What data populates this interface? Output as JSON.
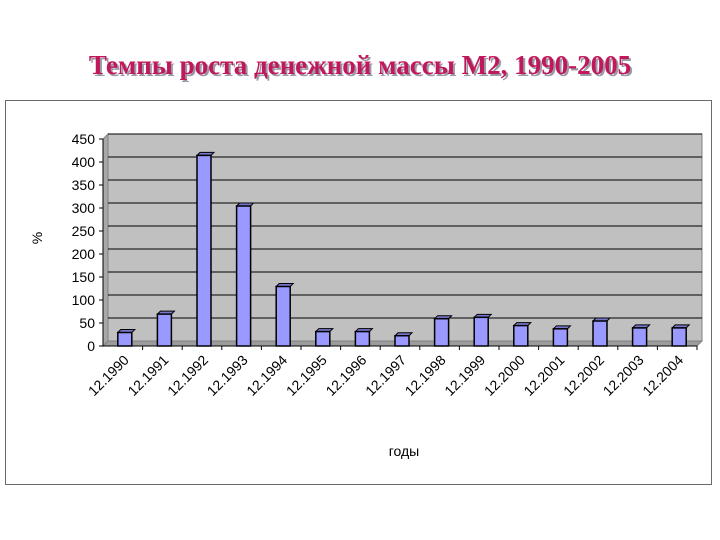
{
  "title": "Темпы роста денежной массы М2, 1990-2005",
  "colors": {
    "title": "#c0185a",
    "bar_fill": "#9999ff",
    "bar_stroke": "#000000",
    "plot_bg": "#c0c0c0",
    "grid": "#000000"
  },
  "chart_data": {
    "type": "bar",
    "categories": [
      "12.1990",
      "12.1991",
      "12.1992",
      "12.1993",
      "12.1994",
      "12.1995",
      "12.1996",
      "12.1997",
      "12.1998",
      "12.1999",
      "12.2000",
      "12.2001",
      "12.2002",
      "12.2003",
      "12.2004"
    ],
    "values": [
      25,
      65,
      410,
      300,
      125,
      27,
      27,
      18,
      55,
      58,
      40,
      33,
      50,
      35,
      35
    ],
    "title": "",
    "xlabel": "годы",
    "ylabel": "%",
    "ylim": [
      0,
      450
    ],
    "yticks": [
      0,
      50,
      100,
      150,
      200,
      250,
      300,
      350,
      400,
      450
    ],
    "grid": true,
    "legend": "none"
  }
}
